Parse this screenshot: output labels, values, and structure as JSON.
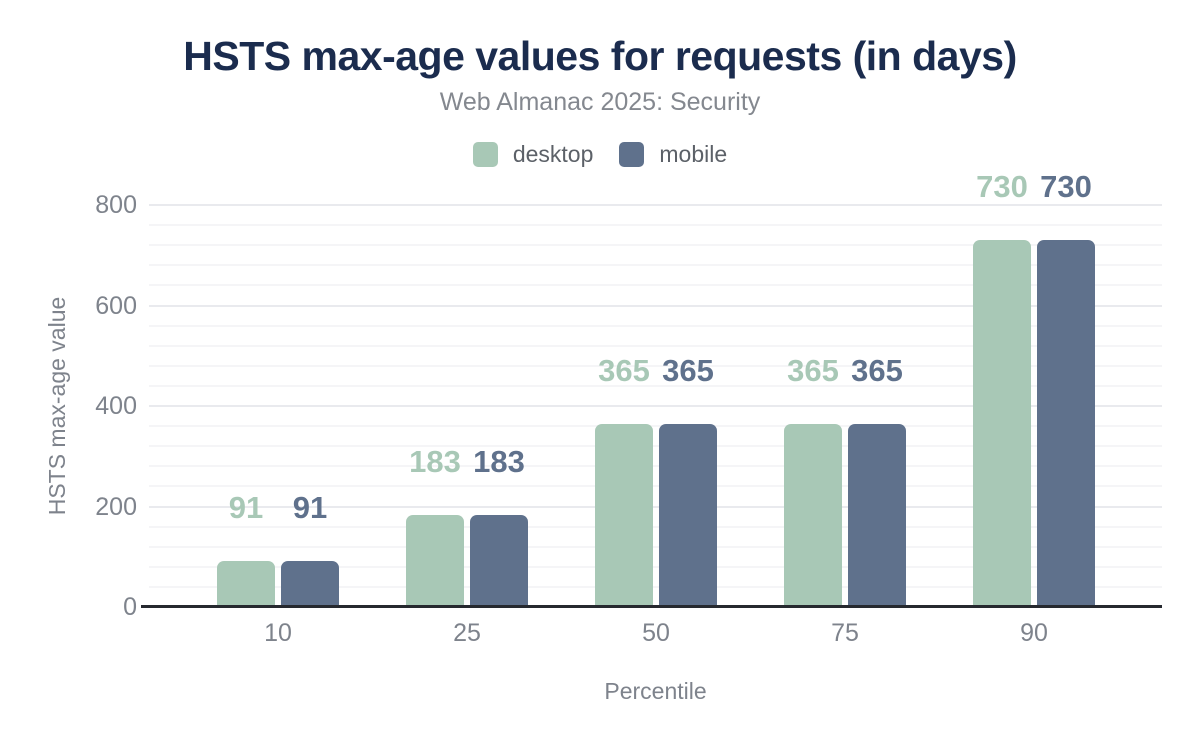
{
  "page": {
    "background": "#ffffff"
  },
  "header": {
    "title": "HSTS max-age values for requests (in days)",
    "subtitle": "Web Almanac 2025: Security"
  },
  "chart_data": {
    "type": "bar",
    "title": "HSTS max-age values for requests (in days)",
    "subtitle": "Web Almanac 2025: Security",
    "categories": [
      "10",
      "25",
      "50",
      "75",
      "90"
    ],
    "series": [
      {
        "name": "desktop",
        "color": "#a8c8b6",
        "values": [
          91,
          183,
          365,
          365,
          730
        ]
      },
      {
        "name": "mobile",
        "color": "#5f718c",
        "values": [
          91,
          183,
          365,
          365,
          730
        ]
      }
    ],
    "xlabel": "Percentile",
    "ylabel": "HSTS max-age value",
    "ylim": [
      0,
      800
    ],
    "yticks": [
      0,
      200,
      400,
      600,
      800
    ],
    "minor_gridline_step": 40,
    "grid": true,
    "legend_position": "top",
    "data_labels": true,
    "title_color": "#1b2c4e"
  }
}
